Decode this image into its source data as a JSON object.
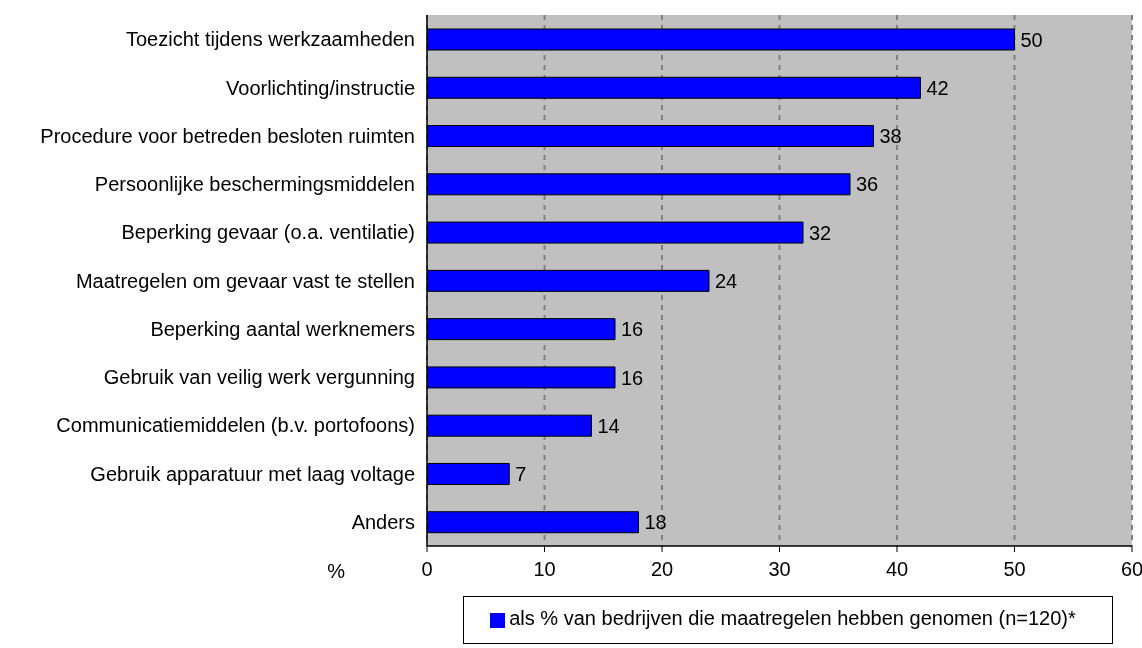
{
  "chart_data": {
    "type": "bar",
    "orientation": "horizontal",
    "categories": [
      "Toezicht tijdens werkzaamheden",
      "Voorlichting/instructie",
      "Procedure voor betreden besloten ruimten",
      "Persoonlijke beschermingsmiddelen",
      "Beperking gevaar (o.a. ventilatie)",
      "Maatregelen om gevaar vast te stellen",
      "Beperking aantal werknemers",
      "Gebruik van veilig werk vergunning",
      "Communicatiemiddelen (b.v. portofoons)",
      "Gebruik apparatuur met laag voltage",
      "Anders"
    ],
    "series": [
      {
        "name": "als % van bedrijven die maatregelen hebben genomen (n=120)*",
        "color": "#0000ff",
        "values": [
          50,
          42,
          38,
          36,
          32,
          24,
          16,
          16,
          14,
          7,
          18
        ]
      }
    ],
    "xlabel": "%",
    "xlim": [
      0,
      60
    ],
    "xticks": [
      0,
      10,
      20,
      30,
      40,
      50,
      60
    ],
    "grid": "x",
    "legend": "bottom",
    "data_labels": true
  }
}
